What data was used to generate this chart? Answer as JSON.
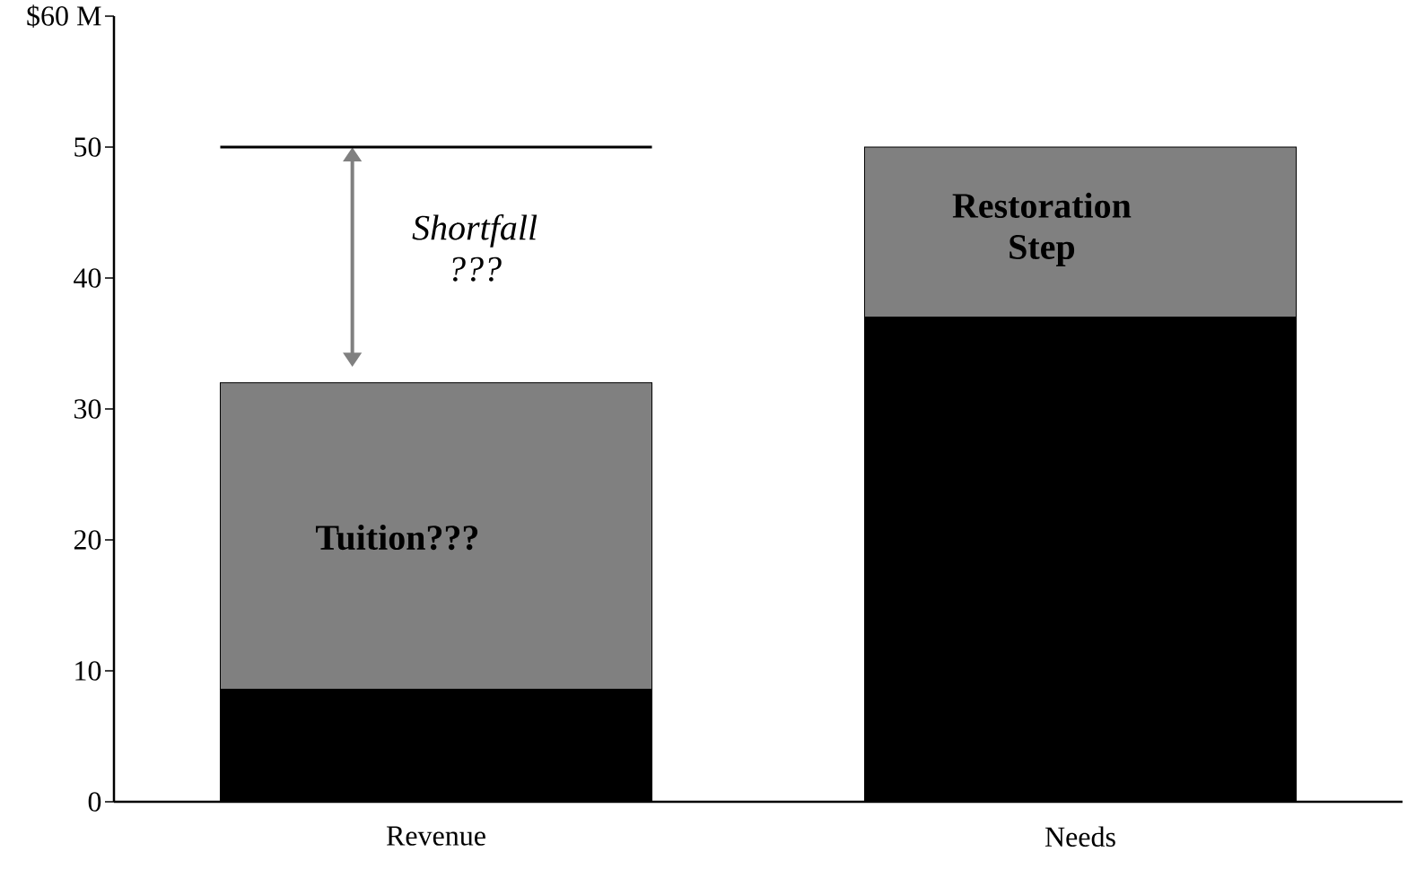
{
  "chart_data": {
    "type": "bar",
    "stacked": true,
    "categories": [
      "Revenue",
      "Needs"
    ],
    "series": [
      {
        "color": "#000000",
        "values": [
          8.6,
          37
        ]
      },
      {
        "color": "#808080",
        "values": [
          23.4,
          13
        ]
      }
    ],
    "ylim": [
      0,
      60
    ],
    "yticks": [
      0,
      10,
      20,
      30,
      40,
      50,
      {
        "value": 60,
        "label": "$60 M"
      }
    ],
    "ref_lines": [
      {
        "axis": "y",
        "value": 50,
        "color": "#000000"
      }
    ],
    "annotations": [
      "Shortfall ???",
      "Tuition???",
      "Restoration Step"
    ]
  }
}
